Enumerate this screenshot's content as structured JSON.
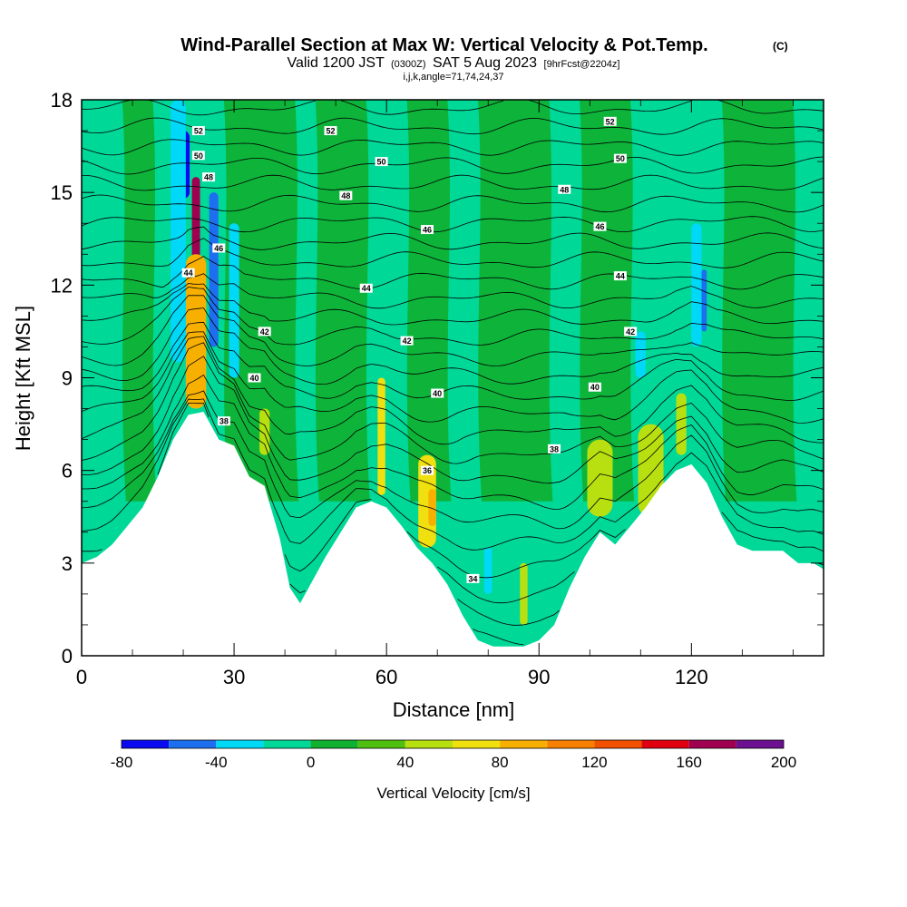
{
  "header": {
    "title": "Wind-Parallel Section at Max W: Vertical Velocity & Pot.Temp.",
    "title_unit": "(C)",
    "valid_prefix": "Valid 1200 JST",
    "valid_utc": "(0300Z)",
    "valid_date": "SAT 5 Aug 2023",
    "forecast": "[9hrFcst@2204z]",
    "grid_info": "i,j,k,angle=71,74,24,37"
  },
  "chart_data": {
    "type": "heatmap",
    "xlabel": "Distance [nm]",
    "ylabel": "Height [Kft MSL]",
    "xlim": [
      0,
      146
    ],
    "ylim": [
      0,
      18
    ],
    "x_ticks": [
      0,
      30,
      60,
      90,
      120
    ],
    "x_tick_labels": [
      "0",
      "30",
      "60",
      "90",
      "120"
    ],
    "y_ticks": [
      0,
      3,
      6,
      9,
      12,
      15,
      18
    ],
    "y_tick_labels": [
      "0",
      "3",
      "6",
      "9",
      "12",
      "15",
      "18"
    ],
    "colorbar": {
      "label": "Vertical Velocity [cm/s]",
      "colors": [
        "#0a0af0",
        "#1e6ef0",
        "#00d8f8",
        "#00d898",
        "#10b030",
        "#50c010",
        "#b8e010",
        "#f0e010",
        "#f8b000",
        "#f88000",
        "#f05000",
        "#e00010",
        "#a00050",
        "#6a1090"
      ],
      "tick_values": [
        -80,
        -40,
        0,
        40,
        80,
        120,
        160,
        200
      ],
      "tick_labels": [
        "-80",
        "-40",
        "0",
        "40",
        "80",
        "120",
        "160",
        "200"
      ]
    },
    "terrain": [
      {
        "x": 0,
        "z": 3.0
      },
      {
        "x": 3,
        "z": 3.2
      },
      {
        "x": 6,
        "z": 3.6
      },
      {
        "x": 9,
        "z": 4.2
      },
      {
        "x": 12,
        "z": 4.8
      },
      {
        "x": 15,
        "z": 5.8
      },
      {
        "x": 18,
        "z": 7.0
      },
      {
        "x": 21,
        "z": 7.8
      },
      {
        "x": 24,
        "z": 7.9
      },
      {
        "x": 27,
        "z": 7.0
      },
      {
        "x": 30,
        "z": 6.8
      },
      {
        "x": 33,
        "z": 5.8
      },
      {
        "x": 36,
        "z": 5.5
      },
      {
        "x": 39,
        "z": 3.8
      },
      {
        "x": 41,
        "z": 2.2
      },
      {
        "x": 43,
        "z": 1.7
      },
      {
        "x": 45,
        "z": 2.3
      },
      {
        "x": 48,
        "z": 3.2
      },
      {
        "x": 51,
        "z": 4.0
      },
      {
        "x": 54,
        "z": 4.8
      },
      {
        "x": 57,
        "z": 5.0
      },
      {
        "x": 60,
        "z": 4.8
      },
      {
        "x": 63,
        "z": 4.2
      },
      {
        "x": 66,
        "z": 3.5
      },
      {
        "x": 69,
        "z": 3.0
      },
      {
        "x": 72,
        "z": 2.3
      },
      {
        "x": 75,
        "z": 1.3
      },
      {
        "x": 78,
        "z": 0.5
      },
      {
        "x": 81,
        "z": 0.3
      },
      {
        "x": 84,
        "z": 0.3
      },
      {
        "x": 87,
        "z": 0.3
      },
      {
        "x": 90,
        "z": 0.5
      },
      {
        "x": 93,
        "z": 1.0
      },
      {
        "x": 96,
        "z": 2.2
      },
      {
        "x": 99,
        "z": 3.2
      },
      {
        "x": 102,
        "z": 4.0
      },
      {
        "x": 105,
        "z": 3.6
      },
      {
        "x": 108,
        "z": 4.2
      },
      {
        "x": 111,
        "z": 4.8
      },
      {
        "x": 114,
        "z": 5.5
      },
      {
        "x": 117,
        "z": 6.0
      },
      {
        "x": 120,
        "z": 6.2
      },
      {
        "x": 123,
        "z": 5.6
      },
      {
        "x": 126,
        "z": 4.5
      },
      {
        "x": 129,
        "z": 3.6
      },
      {
        "x": 132,
        "z": 3.4
      },
      {
        "x": 135,
        "z": 3.4
      },
      {
        "x": 138,
        "z": 3.4
      },
      {
        "x": 141,
        "z": 3.0
      },
      {
        "x": 144,
        "z": 3.0
      },
      {
        "x": 146,
        "z": 2.8
      }
    ],
    "velocity_features": [
      {
        "x": 20,
        "z1": 14.8,
        "z2": 17.0,
        "w": 2.5,
        "value": -80
      },
      {
        "x": 22.5,
        "z1": 9.0,
        "z2": 15.5,
        "w": 1.6,
        "value": 160
      },
      {
        "x": 22.5,
        "z1": 8.0,
        "z2": 13.0,
        "w": 4.0,
        "value": 80
      },
      {
        "x": 26,
        "z1": 10.0,
        "z2": 15.0,
        "w": 1.8,
        "value": -60
      },
      {
        "x": 19,
        "z1": 9.5,
        "z2": 18.0,
        "w": 3.0,
        "value": -30
      },
      {
        "x": 30,
        "z1": 9.0,
        "z2": 14.0,
        "w": 2.0,
        "value": -30
      },
      {
        "x": 59,
        "z1": 5.2,
        "z2": 9.0,
        "w": 1.5,
        "value": 60
      },
      {
        "x": 68,
        "z1": 3.5,
        "z2": 6.5,
        "w": 3.5,
        "value": 60
      },
      {
        "x": 69,
        "z1": 4.2,
        "z2": 5.4,
        "w": 1.5,
        "value": 80
      },
      {
        "x": 102,
        "z1": 4.5,
        "z2": 7.0,
        "w": 5.0,
        "value": 40
      },
      {
        "x": 112,
        "z1": 4.5,
        "z2": 7.5,
        "w": 5.0,
        "value": 40
      },
      {
        "x": 118,
        "z1": 6.5,
        "z2": 8.5,
        "w": 2.0,
        "value": 50
      },
      {
        "x": 121,
        "z1": 10.0,
        "z2": 14.0,
        "w": 2.0,
        "value": -30
      },
      {
        "x": 122.5,
        "z1": 10.5,
        "z2": 12.5,
        "w": 1.0,
        "value": -60
      },
      {
        "x": 110,
        "z1": 9.0,
        "z2": 10.5,
        "w": 2.0,
        "value": -30
      },
      {
        "x": 80,
        "z1": 2.0,
        "z2": 3.5,
        "w": 1.5,
        "value": -30
      },
      {
        "x": 87,
        "z1": 1.0,
        "z2": 3.0,
        "w": 1.5,
        "value": 40
      },
      {
        "x": 36,
        "z1": 6.5,
        "z2": 8.0,
        "w": 2.0,
        "value": 40
      }
    ],
    "theta_contours": [
      {
        "label": "34",
        "z": 2.5,
        "label_x": 77
      },
      {
        "label": "36",
        "z": 6.0,
        "label_x": 68
      },
      {
        "label": "38",
        "z": 7.6,
        "label_x": 28
      },
      {
        "label": "38",
        "z": 6.7,
        "label_x": 93
      },
      {
        "label": "40",
        "z": 9.0,
        "label_x": 34
      },
      {
        "label": "40",
        "z": 8.5,
        "label_x": 70
      },
      {
        "label": "40",
        "z": 8.7,
        "label_x": 101
      },
      {
        "label": "42",
        "z": 10.5,
        "label_x": 36
      },
      {
        "label": "42",
        "z": 10.2,
        "label_x": 64
      },
      {
        "label": "42",
        "z": 10.5,
        "label_x": 108
      },
      {
        "label": "44",
        "z": 12.4,
        "label_x": 21
      },
      {
        "label": "44",
        "z": 11.9,
        "label_x": 56
      },
      {
        "label": "44",
        "z": 12.3,
        "label_x": 106
      },
      {
        "label": "46",
        "z": 13.2,
        "label_x": 27
      },
      {
        "label": "46",
        "z": 13.8,
        "label_x": 68
      },
      {
        "label": "46",
        "z": 13.9,
        "label_x": 102
      },
      {
        "label": "48",
        "z": 15.5,
        "label_x": 25
      },
      {
        "label": "48",
        "z": 14.9,
        "label_x": 52
      },
      {
        "label": "48",
        "z": 15.1,
        "label_x": 95
      },
      {
        "label": "50",
        "z": 16.2,
        "label_x": 23
      },
      {
        "label": "50",
        "z": 16.0,
        "label_x": 59
      },
      {
        "label": "50",
        "z": 16.1,
        "label_x": 106
      },
      {
        "label": "52",
        "z": 17.0,
        "label_x": 23
      },
      {
        "label": "52",
        "z": 17.0,
        "label_x": 49
      },
      {
        "label": "52",
        "z": 17.3,
        "label_x": 104
      }
    ]
  }
}
